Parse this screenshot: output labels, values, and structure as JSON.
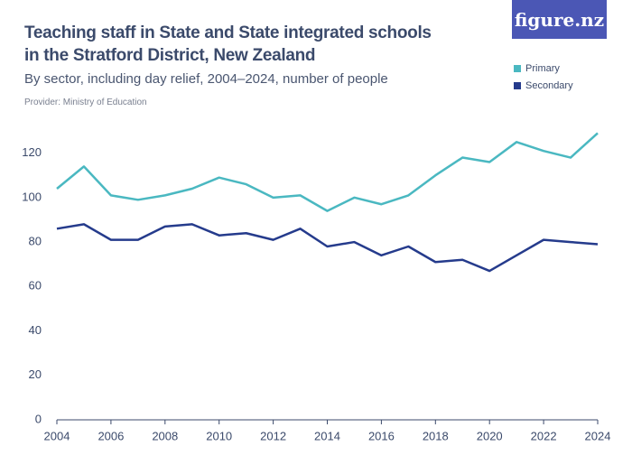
{
  "logo": "figure.nz",
  "chart_data": {
    "type": "line",
    "title": "Teaching staff in State and State integrated schools in the Stratford District, New Zealand",
    "subtitle": "By sector, including day relief, 2004–2024, number of people",
    "source": "Provider: Ministry of Education",
    "x": [
      2004,
      2005,
      2006,
      2007,
      2008,
      2009,
      2010,
      2011,
      2012,
      2013,
      2014,
      2015,
      2016,
      2017,
      2018,
      2019,
      2020,
      2021,
      2022,
      2023,
      2024
    ],
    "series": [
      {
        "name": "Primary",
        "color": "#4ab8c1",
        "values": [
          104,
          114,
          101,
          99,
          101,
          104,
          109,
          106,
          100,
          101,
          94,
          100,
          97,
          101,
          110,
          118,
          116,
          125,
          121,
          118,
          129
        ]
      },
      {
        "name": "Secondary",
        "color": "#253b8c",
        "values": [
          86,
          88,
          81,
          81,
          87,
          88,
          83,
          84,
          81,
          86,
          78,
          80,
          74,
          78,
          71,
          72,
          67,
          74,
          81,
          80,
          79
        ]
      }
    ],
    "xlim": [
      2004,
      2024
    ],
    "xticks": [
      2004,
      2006,
      2008,
      2010,
      2012,
      2014,
      2016,
      2018,
      2020,
      2022,
      2024
    ],
    "ylim": [
      0,
      130
    ],
    "yticks": [
      0,
      20,
      40,
      60,
      80,
      100,
      120
    ],
    "grid": false,
    "legend": "top-right"
  }
}
